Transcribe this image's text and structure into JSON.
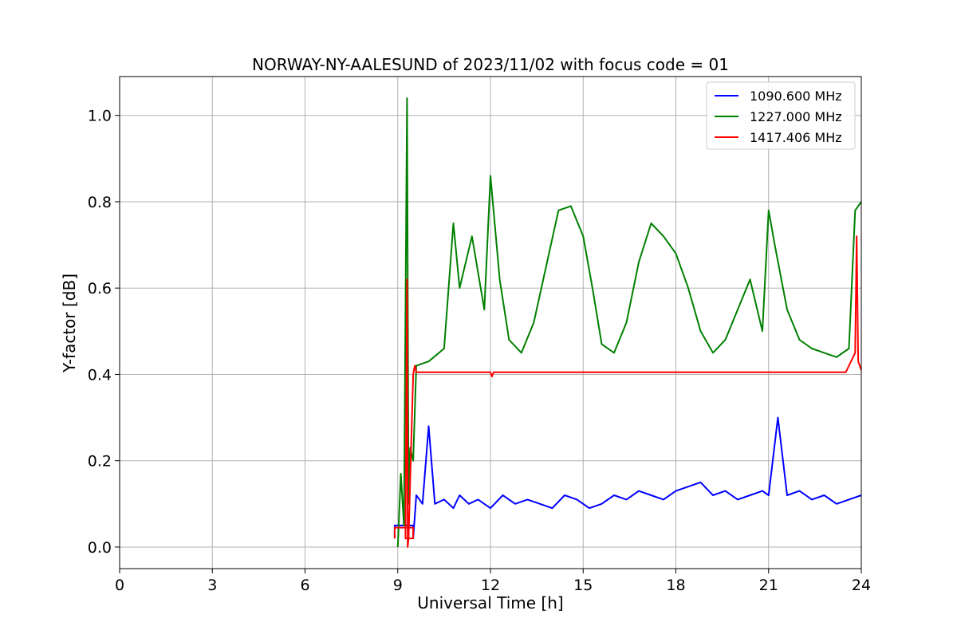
{
  "chart_data": {
    "type": "line",
    "title": "NORWAY-NY-AALESUND of 2023/11/02 with focus code = 01",
    "xlabel": "Universal Time [h]",
    "ylabel": "Y-factor [dB]",
    "xlim": [
      0,
      24
    ],
    "ylim": [
      -0.05,
      1.09
    ],
    "xticks": [
      0,
      3,
      6,
      9,
      12,
      15,
      18,
      21,
      24
    ],
    "xtick_labels": [
      "0",
      "3",
      "6",
      "9",
      "12",
      "15",
      "18",
      "21",
      "24"
    ],
    "yticks": [
      0.0,
      0.2,
      0.4,
      0.6,
      0.8,
      1.0
    ],
    "ytick_labels": [
      "0.0",
      "0.2",
      "0.4",
      "0.6",
      "0.8",
      "1.0"
    ],
    "grid": true,
    "legend_position": "top-right",
    "series": [
      {
        "name": "1090.600 MHz",
        "color": "#0000ff",
        "x": [
          8.9,
          8.9,
          9.5,
          9.5,
          9.6,
          9.8,
          10.0,
          10.2,
          10.5,
          10.8,
          11.0,
          11.3,
          11.6,
          12.0,
          12.4,
          12.8,
          13.2,
          13.6,
          14.0,
          14.4,
          14.8,
          15.2,
          15.6,
          16.0,
          16.4,
          16.8,
          17.2,
          17.6,
          18.0,
          18.4,
          18.8,
          19.2,
          19.6,
          20.0,
          20.4,
          20.8,
          21.0,
          21.3,
          21.6,
          22.0,
          22.4,
          22.8,
          23.2,
          23.6,
          24.0
        ],
        "y": [
          0.02,
          0.05,
          0.05,
          0.02,
          0.12,
          0.1,
          0.28,
          0.1,
          0.11,
          0.09,
          0.12,
          0.1,
          0.11,
          0.09,
          0.12,
          0.1,
          0.11,
          0.1,
          0.09,
          0.12,
          0.11,
          0.09,
          0.1,
          0.12,
          0.11,
          0.13,
          0.12,
          0.11,
          0.13,
          0.14,
          0.15,
          0.12,
          0.13,
          0.11,
          0.12,
          0.13,
          0.12,
          0.3,
          0.12,
          0.13,
          0.11,
          0.12,
          0.1,
          0.11,
          0.12
        ]
      },
      {
        "name": "1227.000 MHz",
        "color": "#008000",
        "x": [
          9.0,
          9.1,
          9.2,
          9.3,
          9.35,
          9.4,
          9.5,
          9.6,
          10.0,
          10.5,
          10.8,
          11.0,
          11.4,
          11.8,
          12.0,
          12.3,
          12.6,
          13.0,
          13.4,
          13.8,
          14.2,
          14.6,
          15.0,
          15.3,
          15.6,
          16.0,
          16.4,
          16.8,
          17.2,
          17.6,
          18.0,
          18.4,
          18.8,
          19.2,
          19.6,
          20.0,
          20.4,
          20.8,
          21.0,
          21.2,
          21.6,
          22.0,
          22.4,
          22.8,
          23.2,
          23.6,
          23.8,
          24.0
        ],
        "y": [
          0.0,
          0.17,
          0.05,
          1.04,
          0.1,
          0.23,
          0.2,
          0.42,
          0.43,
          0.46,
          0.75,
          0.6,
          0.72,
          0.55,
          0.86,
          0.62,
          0.48,
          0.45,
          0.52,
          0.65,
          0.78,
          0.79,
          0.72,
          0.6,
          0.47,
          0.45,
          0.52,
          0.66,
          0.75,
          0.72,
          0.68,
          0.6,
          0.5,
          0.45,
          0.48,
          0.55,
          0.62,
          0.5,
          0.78,
          0.7,
          0.55,
          0.48,
          0.46,
          0.45,
          0.44,
          0.46,
          0.78,
          0.8
        ]
      },
      {
        "name": "1417.406 MHz",
        "color": "#ff0000",
        "x": [
          8.9,
          8.9,
          9.5,
          9.5,
          9.25,
          9.3,
          9.32,
          9.35,
          9.5,
          9.55,
          9.6,
          12.0,
          12.05,
          12.1,
          16.0,
          20.0,
          23.0,
          23.5,
          23.6,
          23.8,
          23.85,
          23.9,
          24.0
        ],
        "y": [
          0.02,
          0.045,
          0.045,
          0.02,
          0.02,
          0.62,
          0.0,
          0.02,
          0.4,
          0.42,
          0.405,
          0.405,
          0.395,
          0.405,
          0.405,
          0.405,
          0.405,
          0.405,
          0.42,
          0.45,
          0.72,
          0.43,
          0.41
        ]
      }
    ]
  }
}
